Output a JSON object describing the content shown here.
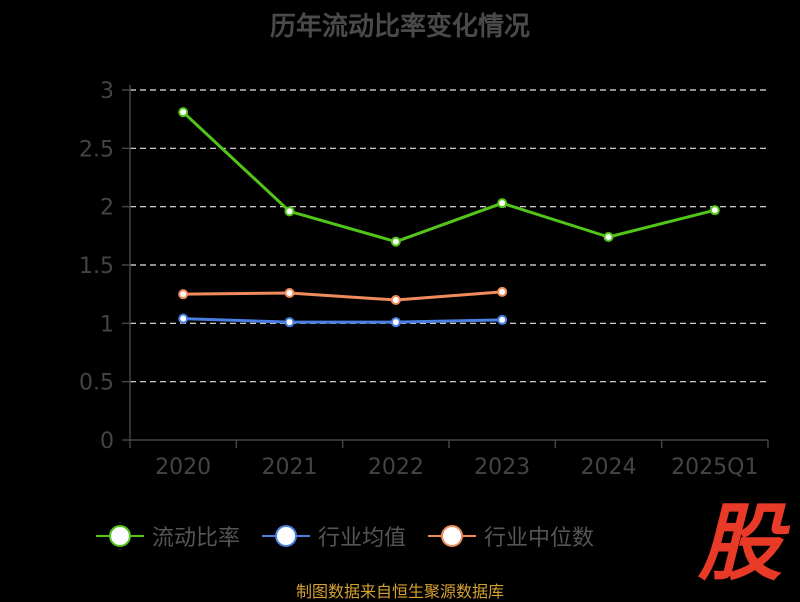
{
  "chart_data": {
    "type": "line",
    "title": "历年流动比率变化情况",
    "categories": [
      "2020",
      "2021",
      "2022",
      "2023",
      "2024",
      "2025Q1"
    ],
    "yticks": [
      "0",
      "0.5",
      "1",
      "1.5",
      "2",
      "2.5",
      "3"
    ],
    "ylim": [
      0,
      3
    ],
    "grid": true,
    "legend_position": "bottom",
    "series": [
      {
        "name": "流动比率",
        "color": "#52c41a",
        "values": [
          2.81,
          1.96,
          1.7,
          2.03,
          1.74,
          1.97
        ]
      },
      {
        "name": "行业均值",
        "color": "#4a7ee0",
        "values": [
          1.04,
          1.01,
          1.01,
          1.03,
          null,
          null
        ]
      },
      {
        "name": "行业中位数",
        "color": "#f08c5c",
        "values": [
          1.25,
          1.26,
          1.2,
          1.27,
          null,
          null
        ]
      }
    ]
  },
  "source": "制图数据来自恒生聚源数据库",
  "logo_text": "股"
}
